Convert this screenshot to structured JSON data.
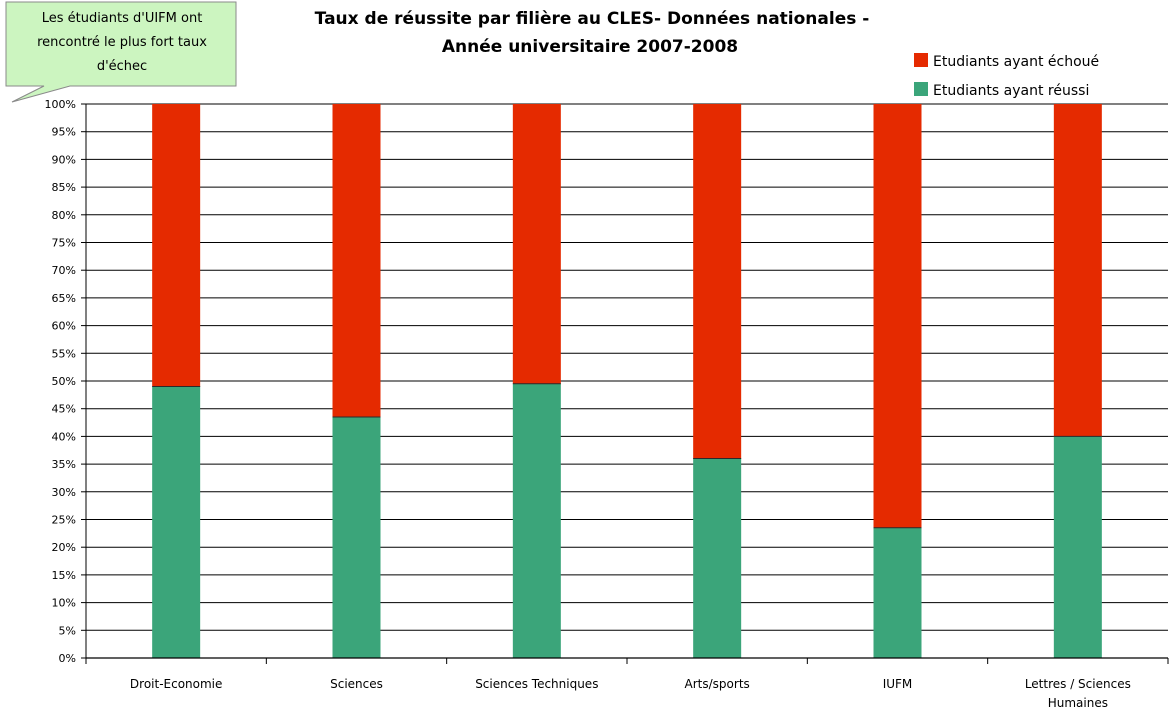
{
  "callout": {
    "lines": [
      "Les étudiants d'UIFM ont",
      "rencontré le plus fort taux",
      "d'échec"
    ]
  },
  "chart_data": {
    "type": "bar",
    "stacked": true,
    "title": [
      "Taux de réussite par filière au CLES- Données nationales -",
      "Année universitaire 2007-2008"
    ],
    "categories": [
      "Droit-Economie",
      "Sciences",
      "Sciences Techniques",
      "Arts/sports",
      "IUFM",
      "Lettres / Sciences Humaines"
    ],
    "series": [
      {
        "name": "Etudiants ayant réussi",
        "color": "#3ba57a",
        "values": [
          49,
          43.5,
          49.5,
          36,
          23.5,
          40
        ]
      },
      {
        "name": "Etudiants ayant échoué",
        "color": "#e52a00",
        "values": [
          51,
          56.5,
          50.5,
          64,
          76.5,
          60
        ]
      }
    ],
    "ylim": [
      0,
      100
    ],
    "yticks": [
      "0%",
      "5%",
      "10%",
      "15%",
      "20%",
      "25%",
      "30%",
      "35%",
      "40%",
      "45%",
      "50%",
      "55%",
      "60%",
      "65%",
      "70%",
      "75%",
      "80%",
      "85%",
      "90%",
      "95%",
      "100%"
    ],
    "grid": true,
    "legend": "top-right"
  }
}
